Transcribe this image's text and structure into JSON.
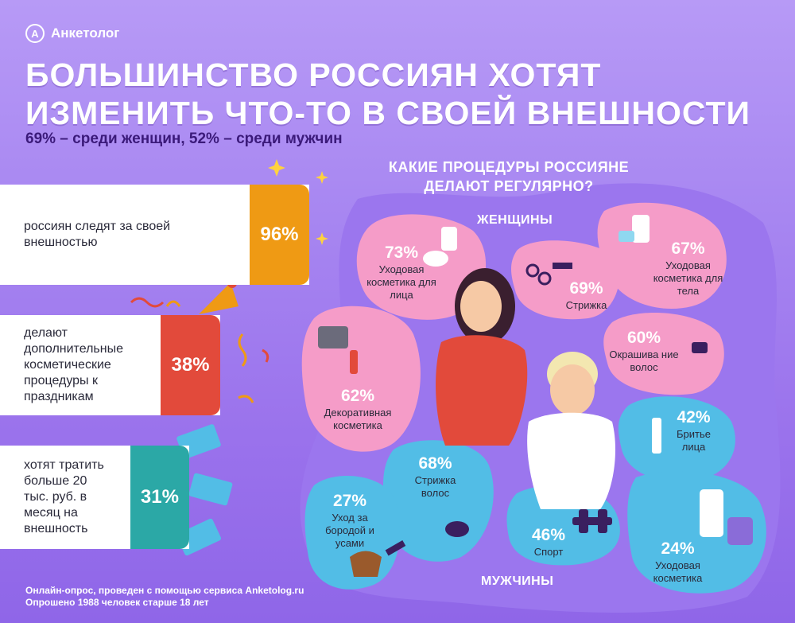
{
  "brand": {
    "logo_letter": "A",
    "name": "Анкетолог"
  },
  "title": "Большинство россиян хотят изменить что-то в своей внешности",
  "subtitle": "69% – среди женщин, 52% – среди мужчин",
  "procedures_title": "Какие процедуры россияне делают регулярно?",
  "label_women": "ЖЕНЩИНЫ",
  "label_men": "МУЖЧИНЫ",
  "stats": [
    {
      "text": "россиян следят за своей внешностью",
      "value": "96%",
      "color": "#ef9a14"
    },
    {
      "text": "делают дополнительные косметические процедуры к праздникам",
      "value": "38%",
      "color": "#e24a3b"
    },
    {
      "text": "хотят тратить больше 20 тыс. руб. в месяц на внешность",
      "value": "31%",
      "color": "#2ba8a6"
    }
  ],
  "women": [
    {
      "value": "73%",
      "label": "Уходовая косметика для лица"
    },
    {
      "value": "69%",
      "label": "Стрижка"
    },
    {
      "value": "67%",
      "label": "Уходовая косметика для тела"
    },
    {
      "value": "60%",
      "label": "Окрашива ние волос"
    },
    {
      "value": "62%",
      "label": "Декоративная косметика"
    }
  ],
  "men": [
    {
      "value": "42%",
      "label": "Бритье лица"
    },
    {
      "value": "68%",
      "label": "Стрижка волос"
    },
    {
      "value": "27%",
      "label": "Уход за бородой и усами"
    },
    {
      "value": "46%",
      "label": "Спорт"
    },
    {
      "value": "24%",
      "label": "Уходовая косметика"
    }
  ],
  "footer": {
    "line1": "Онлайн-опрос, проведен с помощью сервиса Anketolog.ru",
    "line2": "Опрошено 1988 человек старше 18 лет"
  },
  "colors": {
    "pink": "#f59cc8",
    "blue": "#52bde6",
    "accent": "#3b1a7a"
  }
}
